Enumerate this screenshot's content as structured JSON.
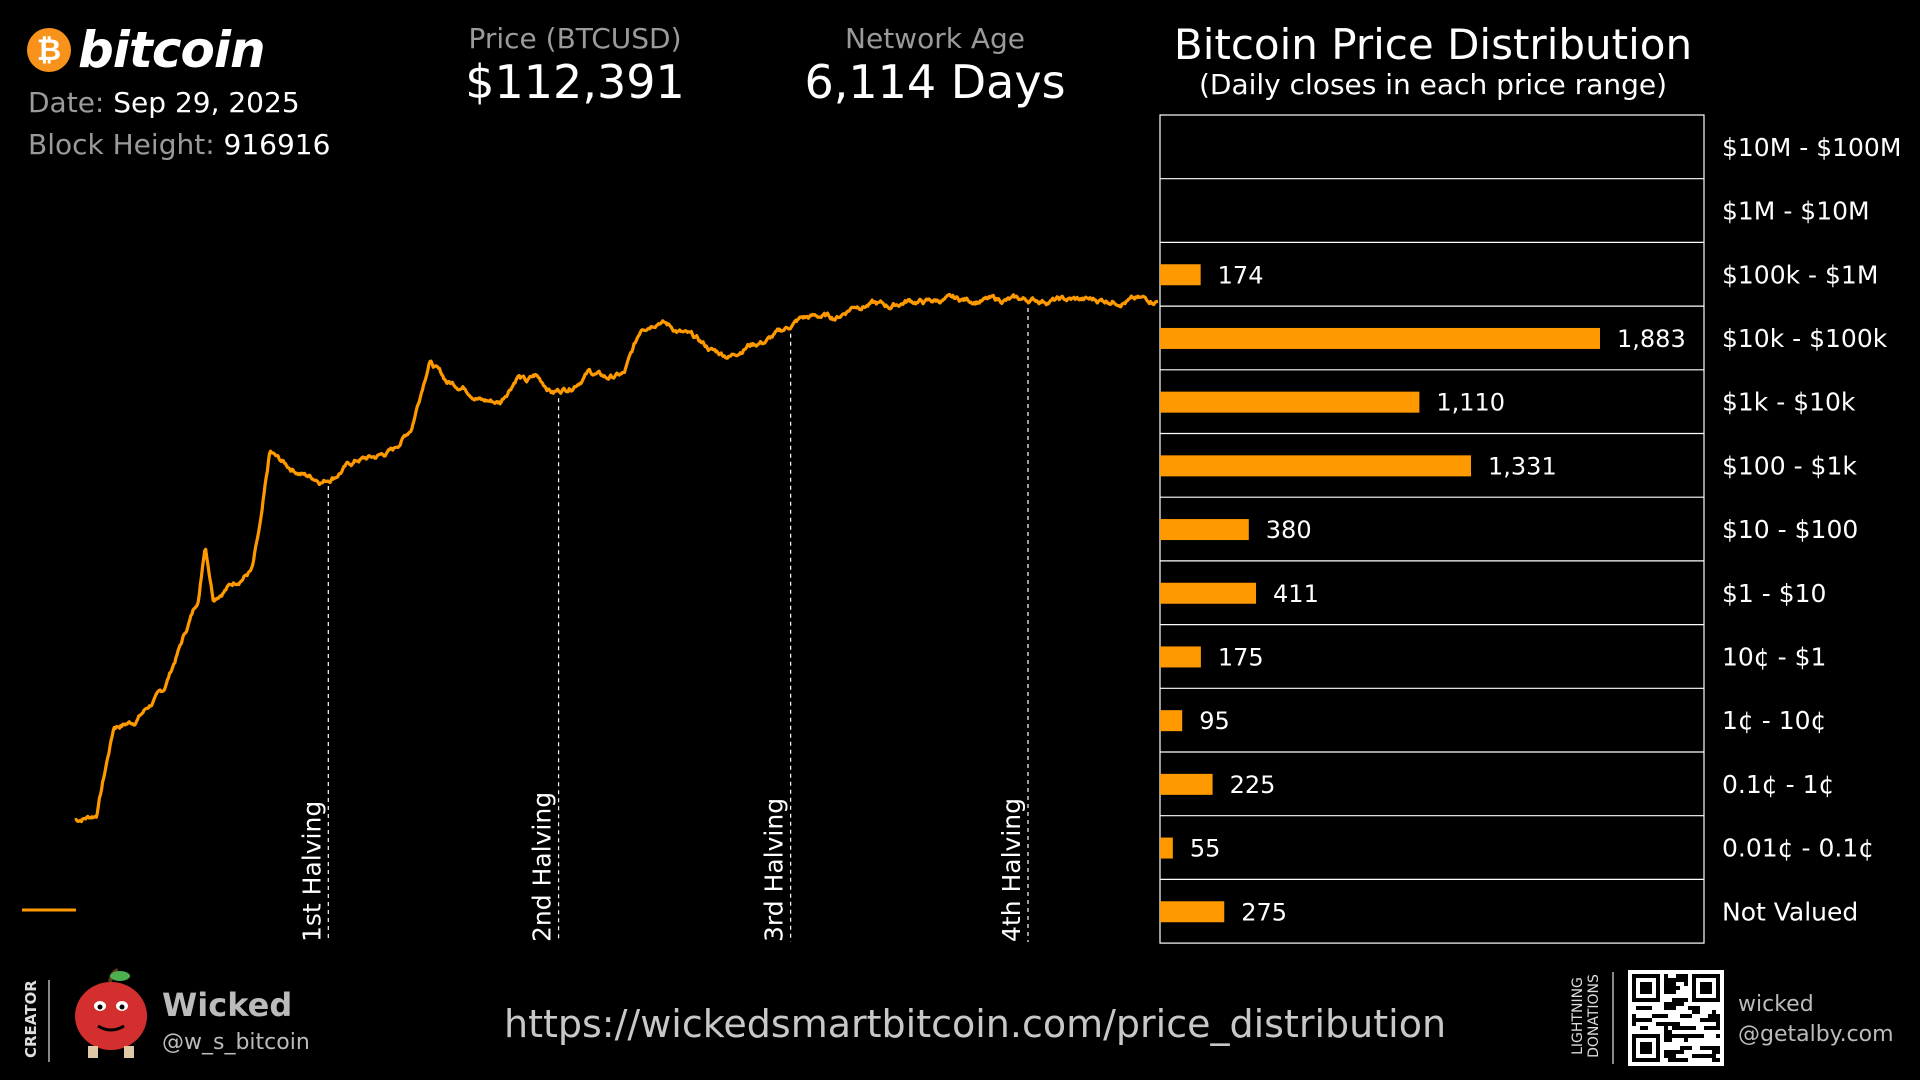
{
  "brand": {
    "logo_text": "bitcoin",
    "accent": "#F7931A",
    "bar_color": "#FF9900"
  },
  "header": {
    "date_label": "Date:",
    "date_value": "Sep 29, 2025",
    "block_label": "Block Height:",
    "block_value": "916916",
    "price_label": "Price (BTCUSD)",
    "price_value": "$112,391",
    "age_label": "Network Age",
    "age_value": "6,114 Days"
  },
  "chart_data": [
    {
      "type": "line",
      "scale": "log",
      "series_color": "#FF9900",
      "x": [
        0,
        120,
        220,
        330,
        500,
        600,
        700,
        735,
        780,
        900,
        1000,
        1050,
        1100,
        1200,
        1300,
        1400,
        1470,
        1530,
        1600,
        1700,
        1800,
        1900,
        2000,
        2100,
        2200,
        2300,
        2400,
        2500,
        2550,
        2600,
        2700,
        2800,
        2900,
        3000,
        3100,
        3200,
        3300,
        3400,
        3500,
        3600,
        3700,
        3800,
        3900,
        4000,
        4100,
        4200,
        4300,
        4400,
        4500,
        4600,
        4700,
        4800,
        4900,
        5000,
        5100,
        5200,
        5300,
        5400,
        5500,
        5600,
        5700,
        5800,
        5900,
        6000,
        6114
      ],
      "y": [
        0.0025,
        0.003,
        0.06,
        0.07,
        0.2,
        1.0,
        5,
        30,
        5,
        8,
        12,
        60,
        600,
        400,
        300,
        250,
        300,
        400,
        500,
        550,
        700,
        1500,
        15000,
        7000,
        6000,
        3800,
        3500,
        9000,
        7000,
        8500,
        5000,
        6000,
        10000,
        8000,
        9000,
        45000,
        60000,
        40000,
        30000,
        20000,
        17000,
        25000,
        28000,
        40000,
        60000,
        65000,
        62000,
        95000,
        100000,
        90000,
        110000,
        105000,
        112391,
        112391,
        112391,
        112391,
        112391,
        112391,
        112391,
        112391,
        112391,
        112391,
        112391,
        112391,
        112391
      ],
      "annotations": [
        "1st Halving",
        "2nd Halving",
        "3rd Halving",
        "4th Halving"
      ]
    },
    {
      "type": "bar",
      "title": "Bitcoin Price Distribution",
      "subtitle": "(Daily closes in each price range)",
      "categories": [
        "$10M - $100M",
        "$1M - $10M",
        "$100k - $1M",
        "$10k - $100k",
        "$1k - $10k",
        "$100 - $1k",
        "$10 - $100",
        "$1 - $10",
        "10¢ - $1",
        "1¢ - 10¢",
        "0.1¢ - 1¢",
        "0.01¢ - 0.1¢",
        "Not Valued"
      ],
      "values": [
        null,
        null,
        174,
        1883,
        1110,
        1331,
        380,
        411,
        175,
        95,
        225,
        55,
        275
      ],
      "value_labels": [
        "",
        "",
        "174",
        "1,883",
        "1,110",
        "1,331",
        "380",
        "411",
        "175",
        "95",
        "225",
        "55",
        "275"
      ]
    }
  ],
  "footer": {
    "creator_label": "CREATOR",
    "creator_name": "Wicked",
    "creator_handle": "@w_s_bitcoin",
    "url": "https://wickedsmartbitcoin.com/price_distribution",
    "lightning_label_1": "LIGHTNING",
    "lightning_label_2": "DONATIONS",
    "lightning_addr_1": "wicked",
    "lightning_addr_2": "@getalby.com"
  }
}
